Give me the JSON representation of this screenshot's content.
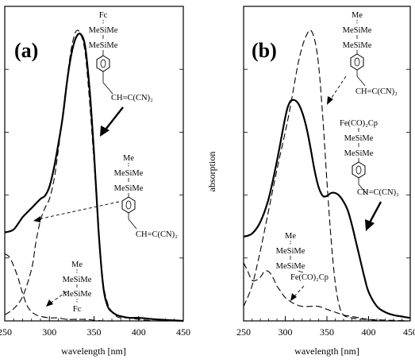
{
  "chart_data": [
    {
      "type": "line",
      "panel_label": "(a)",
      "xlabel": "wavelength [nm]",
      "ylabel": "",
      "xlim": [
        250,
        450
      ],
      "ylim": [
        0,
        1
      ],
      "x_ticks": [
        "250",
        "300",
        "350",
        "400",
        "450"
      ],
      "series": [
        {
          "style": "solid",
          "x": [
            250,
            260,
            270,
            280,
            290,
            295,
            300,
            305,
            310,
            315,
            320,
            325,
            330,
            335,
            340,
            345,
            350,
            355,
            360,
            365,
            370,
            375,
            380,
            390,
            400,
            420,
            450
          ],
          "y": [
            0.29,
            0.3,
            0.34,
            0.37,
            0.4,
            0.41,
            0.44,
            0.5,
            0.58,
            0.67,
            0.79,
            0.88,
            0.93,
            0.94,
            0.9,
            0.76,
            0.55,
            0.3,
            0.12,
            0.05,
            0.03,
            0.02,
            0.015,
            0.01,
            0.01,
            0.005,
            0.0
          ]
        },
        {
          "style": "dashed",
          "x": [
            250,
            260,
            270,
            280,
            285,
            290,
            295,
            300,
            305,
            310,
            315,
            320,
            325,
            330,
            335,
            340,
            345,
            350,
            355,
            360,
            365,
            370,
            375,
            380,
            390,
            400,
            420,
            450
          ],
          "y": [
            0.02,
            0.04,
            0.08,
            0.17,
            0.26,
            0.33,
            0.37,
            0.4,
            0.46,
            0.56,
            0.68,
            0.8,
            0.9,
            0.95,
            0.94,
            0.88,
            0.72,
            0.52,
            0.3,
            0.13,
            0.06,
            0.03,
            0.015,
            0.01,
            0.01,
            0.005,
            0.0,
            0.0
          ]
        },
        {
          "style": "dashed",
          "x": [
            250,
            255,
            260,
            265,
            270,
            275,
            280,
            285,
            290,
            300,
            310,
            320,
            340,
            360,
            380,
            400,
            450
          ],
          "y": [
            0.22,
            0.21,
            0.18,
            0.14,
            0.09,
            0.05,
            0.03,
            0.02,
            0.015,
            0.01,
            0.01,
            0.005,
            0.005,
            0.0,
            0.0,
            0.0,
            0.0
          ]
        }
      ],
      "structures": [
        {
          "lines": [
            "Fc",
            "MeSiMe",
            "MeSiMe",
            "CH=C(CN)₂"
          ]
        },
        {
          "lines": [
            "Me",
            "MeSiMe",
            "MeSiMe",
            "CH=C(CN)₂"
          ]
        },
        {
          "lines": [
            "Me",
            "MeSiMe",
            "MeSiMe",
            "Fc"
          ]
        }
      ]
    },
    {
      "type": "line",
      "panel_label": "(b)",
      "xlabel": "wavelength [nm]",
      "ylabel": "absorption",
      "xlim": [
        250,
        450
      ],
      "ylim": [
        0,
        1
      ],
      "x_ticks": [
        "250",
        "300",
        "350",
        "400",
        "450"
      ],
      "series": [
        {
          "style": "solid",
          "x": [
            250,
            260,
            270,
            280,
            290,
            300,
            305,
            310,
            315,
            320,
            325,
            330,
            335,
            340,
            345,
            350,
            355,
            360,
            365,
            370,
            375,
            380,
            385,
            390,
            395,
            400,
            410,
            420,
            430,
            440,
            450
          ],
          "y": [
            0.29,
            0.3,
            0.34,
            0.42,
            0.55,
            0.7,
            0.75,
            0.76,
            0.75,
            0.72,
            0.67,
            0.6,
            0.52,
            0.46,
            0.43,
            0.43,
            0.44,
            0.44,
            0.43,
            0.41,
            0.38,
            0.33,
            0.27,
            0.21,
            0.15,
            0.1,
            0.05,
            0.03,
            0.02,
            0.015,
            0.01
          ]
        },
        {
          "style": "dashed",
          "x": [
            250,
            260,
            270,
            280,
            290,
            300,
            305,
            310,
            315,
            320,
            325,
            330,
            335,
            340,
            345,
            350,
            355,
            360,
            365,
            370,
            380,
            400,
            450
          ],
          "y": [
            0.05,
            0.12,
            0.24,
            0.38,
            0.52,
            0.65,
            0.72,
            0.8,
            0.88,
            0.94,
            0.98,
            1.0,
            0.97,
            0.88,
            0.7,
            0.48,
            0.28,
            0.13,
            0.05,
            0.02,
            0.01,
            0.005,
            0.0
          ]
        },
        {
          "style": "dashed",
          "x": [
            250,
            255,
            260,
            265,
            270,
            275,
            280,
            285,
            290,
            295,
            300,
            310,
            320,
            330,
            340,
            350,
            360,
            370,
            380,
            390,
            400,
            420,
            450
          ],
          "y": [
            0.2,
            0.17,
            0.14,
            0.14,
            0.15,
            0.17,
            0.17,
            0.15,
            0.12,
            0.1,
            0.08,
            0.06,
            0.05,
            0.05,
            0.05,
            0.04,
            0.03,
            0.02,
            0.015,
            0.01,
            0.005,
            0.0,
            0.0
          ]
        }
      ],
      "structures": [
        {
          "lines": [
            "Me",
            "MeSiMe",
            "MeSiMe",
            "CH=C(CN)₂"
          ]
        },
        {
          "lines": [
            "Fe(CO)₂Cp",
            "MeSiMe",
            "MeSiMe",
            "CH=C(CN)₂"
          ]
        },
        {
          "lines": [
            "Me",
            "MeSiMe",
            "MeSiMe",
            "Fe(CO)₂Cp"
          ]
        }
      ]
    }
  ]
}
